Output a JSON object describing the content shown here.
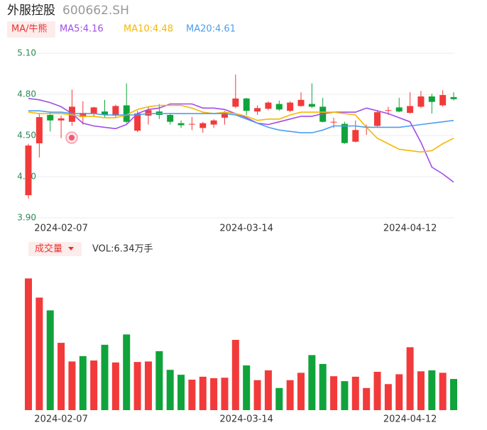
{
  "header": {
    "name": "外服控股",
    "code": "600662.SH"
  },
  "chart_data": [
    {
      "type": "candlestick",
      "legend_button": "MA/牛熊",
      "categories": [
        null,
        null,
        null,
        "2024-02-07",
        null,
        null,
        null,
        null,
        null,
        null,
        null,
        null,
        null,
        null,
        null,
        null,
        null,
        null,
        null,
        null,
        "2024-03-14",
        null,
        null,
        null,
        null,
        null,
        null,
        null,
        null,
        null,
        null,
        null,
        null,
        null,
        null,
        "2024-04-12",
        null,
        null,
        null,
        null
      ],
      "open": [
        4.065,
        4.443,
        4.65,
        4.61,
        4.6,
        4.635,
        4.66,
        4.675,
        4.645,
        4.72,
        4.535,
        4.645,
        4.675,
        4.65,
        4.59,
        4.58,
        4.555,
        4.58,
        4.63,
        4.71,
        4.77,
        4.675,
        4.695,
        4.73,
        4.68,
        4.715,
        4.73,
        4.71,
        4.595,
        4.585,
        4.455,
        4.56,
        4.57,
        4.68,
        4.705,
        4.665,
        4.71,
        4.785,
        4.72,
        4.78
      ],
      "high": [
        4.44,
        4.66,
        4.675,
        4.645,
        4.835,
        4.75,
        4.71,
        4.76,
        4.725,
        4.88,
        4.68,
        4.71,
        4.73,
        4.66,
        4.61,
        4.635,
        4.6,
        4.62,
        4.68,
        4.945,
        4.775,
        4.72,
        4.75,
        4.755,
        4.75,
        4.815,
        4.88,
        4.775,
        4.63,
        4.6,
        4.61,
        4.58,
        4.685,
        4.71,
        4.775,
        4.815,
        4.825,
        4.805,
        4.83,
        4.815
      ],
      "low": [
        4.04,
        4.34,
        4.53,
        4.48,
        4.57,
        4.58,
        4.635,
        4.63,
        4.635,
        4.59,
        4.525,
        4.58,
        4.62,
        4.58,
        4.555,
        4.54,
        4.52,
        4.555,
        4.58,
        4.7,
        4.65,
        4.65,
        4.685,
        4.68,
        4.67,
        4.71,
        4.7,
        4.595,
        4.555,
        4.44,
        4.45,
        4.505,
        4.565,
        4.65,
        4.67,
        4.66,
        4.7,
        4.66,
        4.71,
        4.755
      ],
      "close": [
        4.427,
        4.634,
        4.61,
        4.625,
        4.71,
        4.665,
        4.705,
        4.65,
        4.715,
        4.6,
        4.66,
        4.685,
        4.65,
        4.6,
        4.575,
        4.585,
        4.59,
        4.61,
        4.67,
        4.77,
        4.68,
        4.7,
        4.74,
        4.69,
        4.74,
        4.76,
        4.71,
        4.6,
        4.6,
        4.445,
        4.54,
        4.565,
        4.67,
        4.685,
        4.675,
        4.715,
        4.785,
        4.745,
        4.795,
        4.765
      ],
      "up_color": "#f23a3a",
      "down_color": "#10a33b",
      "ylim": [
        3.9,
        5.1
      ],
      "yticks": [
        {
          "value": 5.1,
          "label": "5.10"
        },
        {
          "value": 4.8,
          "label": "4.80"
        },
        {
          "value": 4.5,
          "label": "4.50"
        },
        {
          "value": 4.2,
          "label": "4.20"
        },
        {
          "value": 3.9,
          "label": "3.90"
        }
      ],
      "grid": true,
      "series": [
        {
          "name": "MA5:4.16",
          "color": "#a14ce8",
          "values": [
            4.77,
            4.76,
            4.74,
            4.71,
            4.66,
            4.59,
            4.57,
            4.56,
            4.55,
            4.58,
            4.66,
            4.69,
            4.7,
            4.73,
            4.73,
            4.73,
            4.7,
            4.7,
            4.69,
            4.66,
            4.63,
            4.59,
            4.58,
            4.6,
            4.62,
            4.64,
            4.64,
            4.66,
            4.67,
            4.67,
            4.67,
            4.7,
            4.68,
            4.66,
            4.63,
            4.6,
            4.45,
            4.27,
            4.22,
            4.16
          ]
        },
        {
          "name": "MA10:4.48",
          "color": "#f5b800",
          "values": [
            4.67,
            4.66,
            4.66,
            4.66,
            4.65,
            4.64,
            4.64,
            4.63,
            4.63,
            4.65,
            4.69,
            4.71,
            4.72,
            4.72,
            4.72,
            4.7,
            4.67,
            4.66,
            4.67,
            4.66,
            4.64,
            4.61,
            4.62,
            4.62,
            4.65,
            4.67,
            4.67,
            4.67,
            4.67,
            4.66,
            4.65,
            4.56,
            4.48,
            4.44,
            4.4,
            4.39,
            4.38,
            4.39,
            4.44,
            4.48
          ]
        },
        {
          "name": "MA20:4.61",
          "color": "#4b9ef0",
          "values": [
            4.68,
            4.68,
            4.67,
            4.67,
            4.66,
            4.66,
            4.66,
            4.65,
            4.65,
            4.65,
            4.65,
            4.66,
            4.66,
            4.66,
            4.66,
            4.66,
            4.66,
            4.66,
            4.66,
            4.65,
            4.62,
            4.59,
            4.56,
            4.54,
            4.53,
            4.52,
            4.52,
            4.54,
            4.57,
            4.57,
            4.57,
            4.56,
            4.56,
            4.56,
            4.56,
            4.57,
            4.58,
            4.59,
            4.6,
            4.61
          ]
        }
      ]
    },
    {
      "type": "bar",
      "button": "成交量",
      "title": "VOL:6.34万手",
      "categories": [
        null,
        null,
        null,
        "2024-02-07",
        null,
        null,
        null,
        null,
        null,
        null,
        null,
        null,
        null,
        null,
        null,
        null,
        null,
        null,
        null,
        null,
        "2024-03-14",
        null,
        null,
        null,
        null,
        null,
        null,
        null,
        null,
        null,
        null,
        null,
        null,
        null,
        null,
        "2024-04-12",
        null,
        null,
        null,
        null
      ],
      "values": [
        26.8,
        22.9,
        20.3,
        13.7,
        9.9,
        11.0,
        10.1,
        13.3,
        9.7,
        15.4,
        9.8,
        9.9,
        12.0,
        8.2,
        7.2,
        6.2,
        6.8,
        6.5,
        6.6,
        14.3,
        9.1,
        6.1,
        8.1,
        4.5,
        6.1,
        7.6,
        11.2,
        9.4,
        6.9,
        5.9,
        6.8,
        4.5,
        7.8,
        5.3,
        7.3,
        12.8,
        7.9,
        8.1,
        7.6,
        6.34
      ],
      "colors": [
        "#f23a3a",
        "#f23a3a",
        "#10a33b",
        "#f23a3a",
        "#f23a3a",
        "#10a33b",
        "#f23a3a",
        "#10a33b",
        "#f23a3a",
        "#10a33b",
        "#f23a3a",
        "#f23a3a",
        "#10a33b",
        "#10a33b",
        "#10a33b",
        "#f23a3a",
        "#f23a3a",
        "#f23a3a",
        "#f23a3a",
        "#f23a3a",
        "#10a33b",
        "#f23a3a",
        "#f23a3a",
        "#10a33b",
        "#f23a3a",
        "#f23a3a",
        "#10a33b",
        "#10a33b",
        "#f23a3a",
        "#10a33b",
        "#f23a3a",
        "#f23a3a",
        "#f23a3a",
        "#f23a3a",
        "#f23a3a",
        "#f23a3a",
        "#f23a3a",
        "#10a33b",
        "#f23a3a",
        "#10a33b"
      ],
      "ylim": [
        0,
        27
      ]
    }
  ]
}
